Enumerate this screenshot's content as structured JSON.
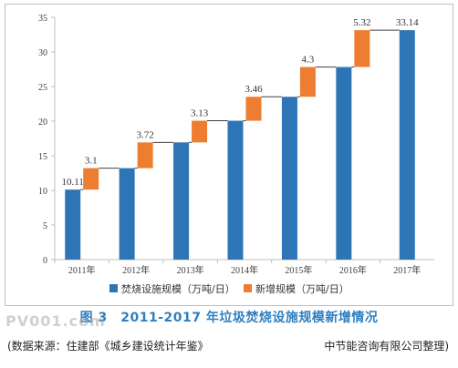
{
  "chart_data": {
    "type": "bar",
    "categories": [
      "2011年",
      "2012年",
      "2013年",
      "2014年",
      "2015年",
      "2016年",
      "2017年"
    ],
    "series": [
      {
        "name": "焚烧设施规模（万吨/日）",
        "values": [
          10.11,
          13.21,
          16.93,
          20.06,
          23.52,
          27.82,
          33.14
        ]
      },
      {
        "name": "新增规模（万吨/日）",
        "values": [
          3.1,
          3.72,
          3.13,
          3.46,
          4.3,
          5.32,
          null
        ]
      }
    ],
    "data_labels": [
      {
        "category": "2011年",
        "text": "10.11",
        "series": "焚烧设施规模（万吨/日）"
      },
      {
        "category": "2011年",
        "text": "3.1",
        "series": "新增规模（万吨/日）"
      },
      {
        "category": "2012年",
        "text": "3.72",
        "series": "新增规模（万吨/日）"
      },
      {
        "category": "2013年",
        "text": "3.13",
        "series": "新增规模（万吨/日）"
      },
      {
        "category": "2014年",
        "text": "3.46",
        "series": "新增规模（万吨/日）"
      },
      {
        "category": "2015年",
        "text": "4.3",
        "series": "新增规模（万吨/日）"
      },
      {
        "category": "2016年",
        "text": "5.32",
        "series": "新增规模（万吨/日）"
      },
      {
        "category": "2017年",
        "text": "33.14",
        "series": "焚烧设施规模（万吨/日）"
      }
    ],
    "yticks": [
      "0",
      "5",
      "10",
      "15",
      "20",
      "25",
      "30",
      "35"
    ],
    "ylim": [
      0,
      35
    ],
    "grid": false,
    "legend": "bottom",
    "colors": {
      "base": "#2e75b6",
      "added": "#ed7d31"
    }
  },
  "caption": "图 3　2011-2017 年垃圾焚烧设施规模新增情况",
  "watermark": "PV001.com",
  "source_left": "(数据来源：住建部《城乡建设统计年鉴》",
  "source_right": "中节能咨询有限公司整理)"
}
